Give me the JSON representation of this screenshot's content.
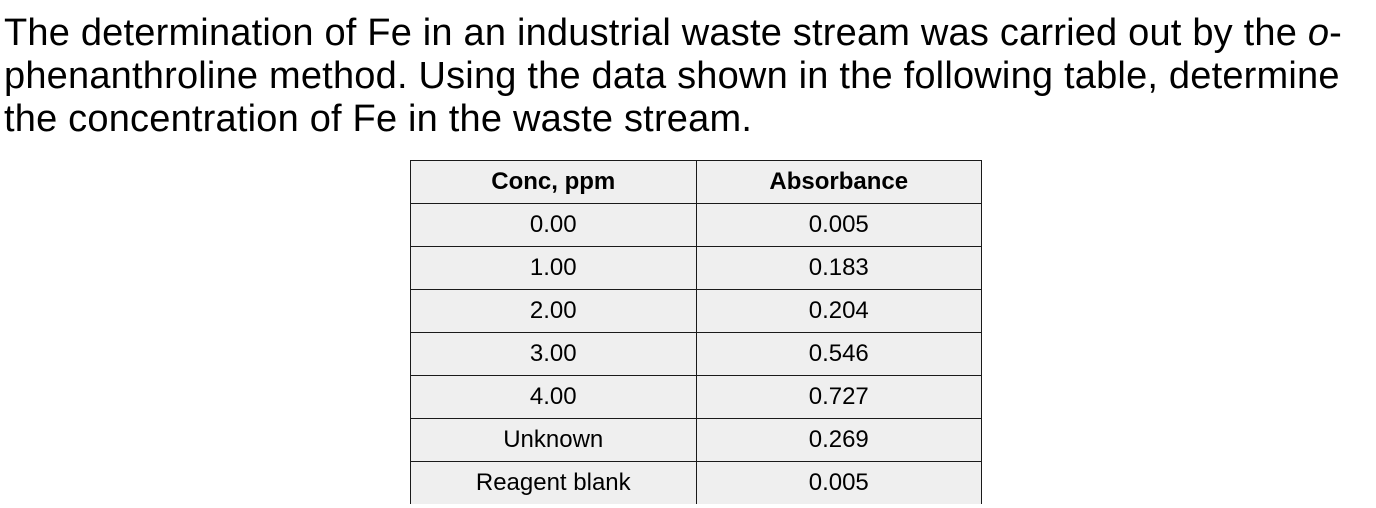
{
  "question": {
    "part1": "The determination of Fe in an industrial waste stream was carried out by the ",
    "italic": "o",
    "part2": "-phenanthroline method. Using the data shown in the following table, determine the concentration of Fe in the waste stream."
  },
  "table": {
    "headers": [
      "Conc, ppm",
      "Absorbance"
    ],
    "rows": [
      [
        "0.00",
        "0.005"
      ],
      [
        "1.00",
        "0.183"
      ],
      [
        "2.00",
        "0.204"
      ],
      [
        "3.00",
        "0.546"
      ],
      [
        "4.00",
        "0.727"
      ],
      [
        "Unknown",
        "0.269"
      ],
      [
        "Reagent blank",
        "0.005"
      ]
    ]
  }
}
